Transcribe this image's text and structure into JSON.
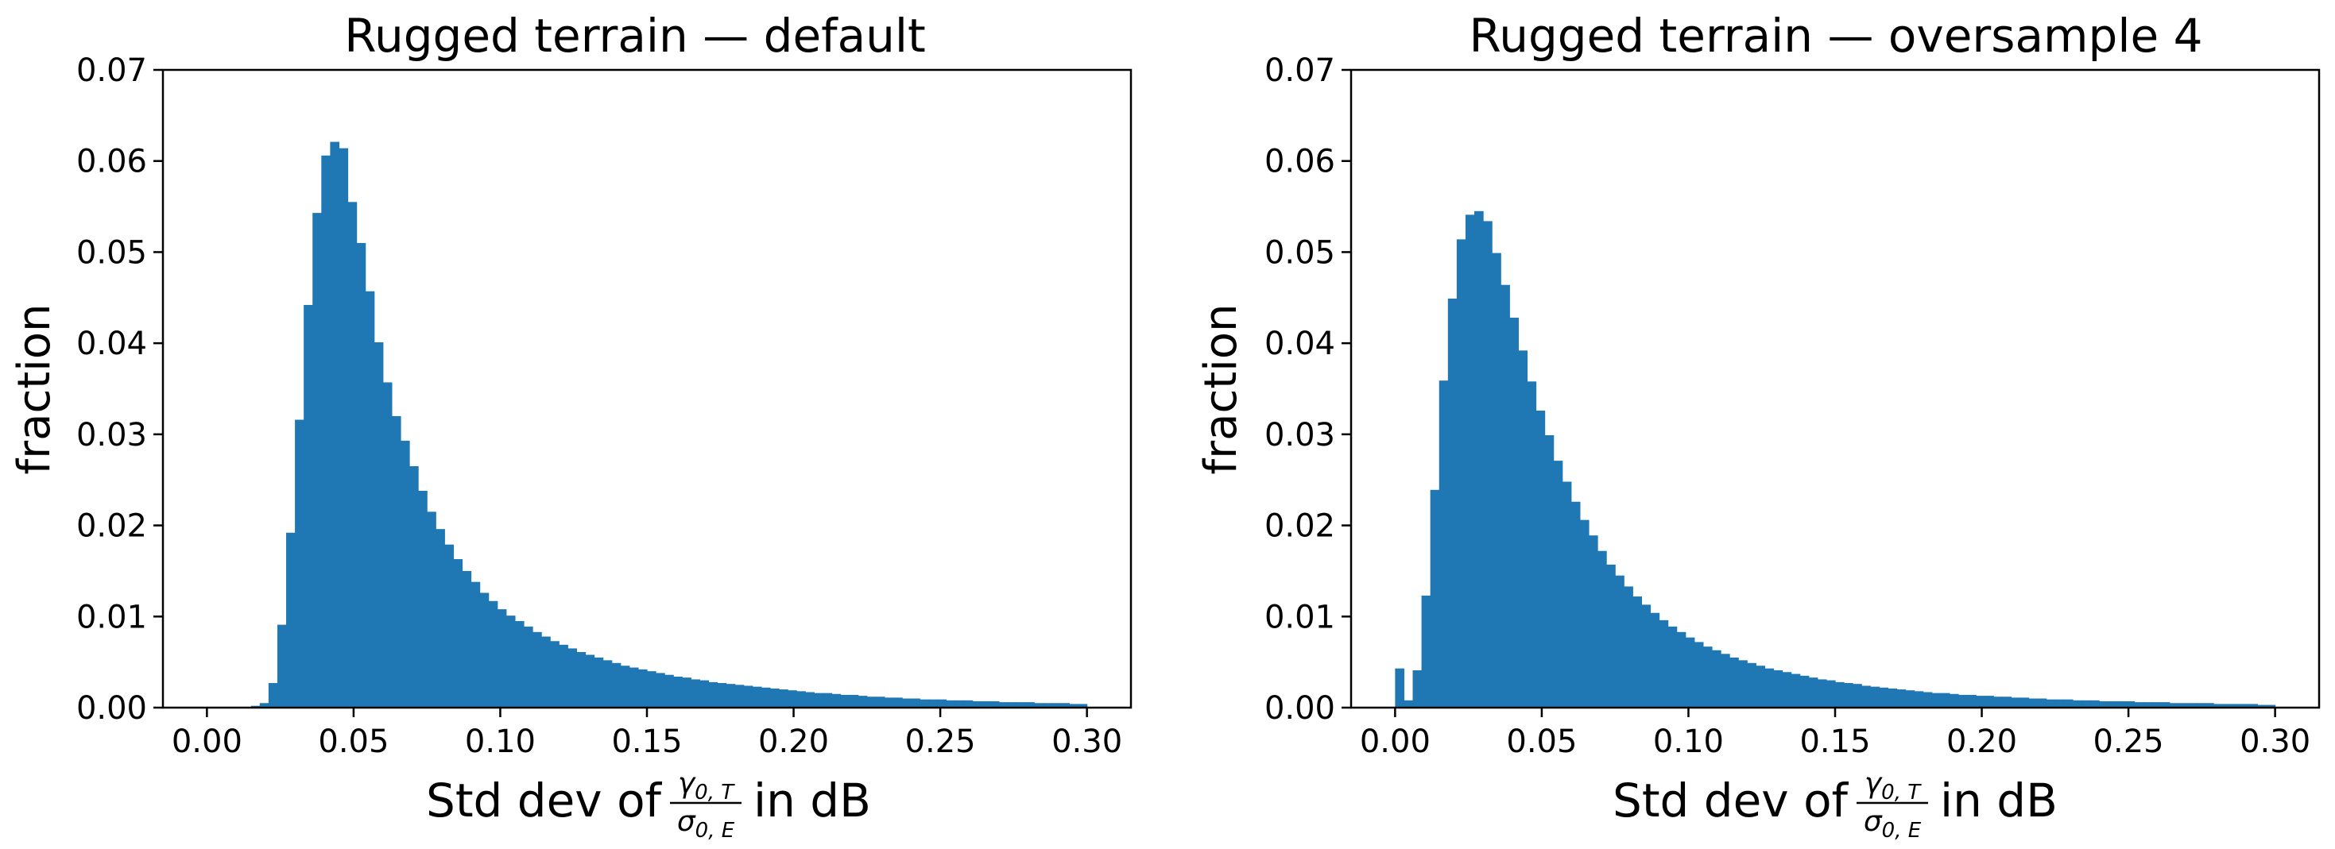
{
  "chart_data": [
    {
      "type": "bar",
      "title": "Rugged terrain — default",
      "ylabel": "fraction",
      "xlabel": {
        "prefix": "Std dev of",
        "numerator": "γ",
        "numerator_sub": "0, T",
        "denominator": "σ",
        "denominator_sub": "0, E",
        "suffix": "in dB"
      },
      "xlim": [
        -0.015,
        0.315
      ],
      "ylim": [
        0,
        0.07
      ],
      "xticks": [
        "0.00",
        "0.05",
        "0.10",
        "0.15",
        "0.20",
        "0.25",
        "0.30"
      ],
      "yticks": [
        "0.00",
        "0.01",
        "0.02",
        "0.03",
        "0.04",
        "0.05",
        "0.06",
        "0.07"
      ],
      "bin_start": 0.0,
      "bin_width": 0.003,
      "color": "#1f77b4",
      "values": [
        0,
        0,
        0,
        0,
        0,
        0.0002,
        0.0005,
        0.0027,
        0.0091,
        0.0192,
        0.0316,
        0.0442,
        0.0543,
        0.0606,
        0.0621,
        0.0614,
        0.0555,
        0.051,
        0.0457,
        0.0401,
        0.0357,
        0.032,
        0.0293,
        0.0265,
        0.0238,
        0.0215,
        0.0196,
        0.0179,
        0.0163,
        0.015,
        0.0138,
        0.0126,
        0.0117,
        0.0108,
        0.0101,
        0.0095,
        0.0089,
        0.0083,
        0.0078,
        0.0073,
        0.0069,
        0.0065,
        0.0061,
        0.0058,
        0.0055,
        0.0052,
        0.0049,
        0.0046,
        0.0044,
        0.0042,
        0.004,
        0.0038,
        0.0036,
        0.0034,
        0.0033,
        0.0031,
        0.003,
        0.0028,
        0.0027,
        0.0026,
        0.0025,
        0.0024,
        0.0023,
        0.0022,
        0.0021,
        0.002,
        0.0019,
        0.0018,
        0.0017,
        0.0016,
        0.0016,
        0.0015,
        0.0014,
        0.0014,
        0.0013,
        0.0012,
        0.0012,
        0.0011,
        0.0011,
        0.001,
        0.001,
        0.0009,
        0.0009,
        0.0009,
        0.0008,
        0.0008,
        0.0008,
        0.0007,
        0.0007,
        0.0007,
        0.0006,
        0.0006,
        0.0006,
        0.0006,
        0.0005,
        0.0005,
        0.0005,
        0.0005,
        0.0004,
        0.0004
      ]
    },
    {
      "type": "bar",
      "title": "Rugged terrain — oversample 4",
      "ylabel": "fraction",
      "xlabel": {
        "prefix": "Std dev of",
        "numerator": "γ",
        "numerator_sub": "0, T",
        "denominator": "σ",
        "denominator_sub": "0, E",
        "suffix": "in dB"
      },
      "xlim": [
        -0.015,
        0.315
      ],
      "ylim": [
        0,
        0.07
      ],
      "xticks": [
        "0.00",
        "0.05",
        "0.10",
        "0.15",
        "0.20",
        "0.25",
        "0.30"
      ],
      "yticks": [
        "0.00",
        "0.01",
        "0.02",
        "0.03",
        "0.04",
        "0.05",
        "0.06",
        "0.07"
      ],
      "bin_start": 0.0,
      "bin_width": 0.003,
      "color": "#1f77b4",
      "values": [
        0.0043,
        0.0008,
        0.0041,
        0.0123,
        0.0239,
        0.0359,
        0.0449,
        0.0514,
        0.0541,
        0.0545,
        0.0534,
        0.0499,
        0.0464,
        0.0428,
        0.0392,
        0.0358,
        0.0326,
        0.0299,
        0.0271,
        0.0248,
        0.0226,
        0.0206,
        0.0189,
        0.0172,
        0.0157,
        0.0145,
        0.0133,
        0.0122,
        0.0113,
        0.0104,
        0.0096,
        0.0089,
        0.0083,
        0.0077,
        0.0072,
        0.0067,
        0.0063,
        0.0059,
        0.0055,
        0.0052,
        0.0049,
        0.0046,
        0.0043,
        0.0041,
        0.0039,
        0.0037,
        0.0035,
        0.0033,
        0.0031,
        0.003,
        0.0028,
        0.0027,
        0.0026,
        0.0024,
        0.0023,
        0.0022,
        0.0021,
        0.002,
        0.0019,
        0.0018,
        0.0017,
        0.0016,
        0.0016,
        0.0015,
        0.0014,
        0.0014,
        0.0013,
        0.0013,
        0.0012,
        0.0012,
        0.0011,
        0.0011,
        0.001,
        0.001,
        0.0009,
        0.0009,
        0.0009,
        0.0008,
        0.0008,
        0.0008,
        0.0007,
        0.0007,
        0.0007,
        0.0007,
        0.0006,
        0.0006,
        0.0006,
        0.0006,
        0.0005,
        0.0005,
        0.0005,
        0.0005,
        0.0005,
        0.0004,
        0.0004,
        0.0004,
        0.0004,
        0.0004,
        0.0003,
        0.0003
      ]
    }
  ]
}
